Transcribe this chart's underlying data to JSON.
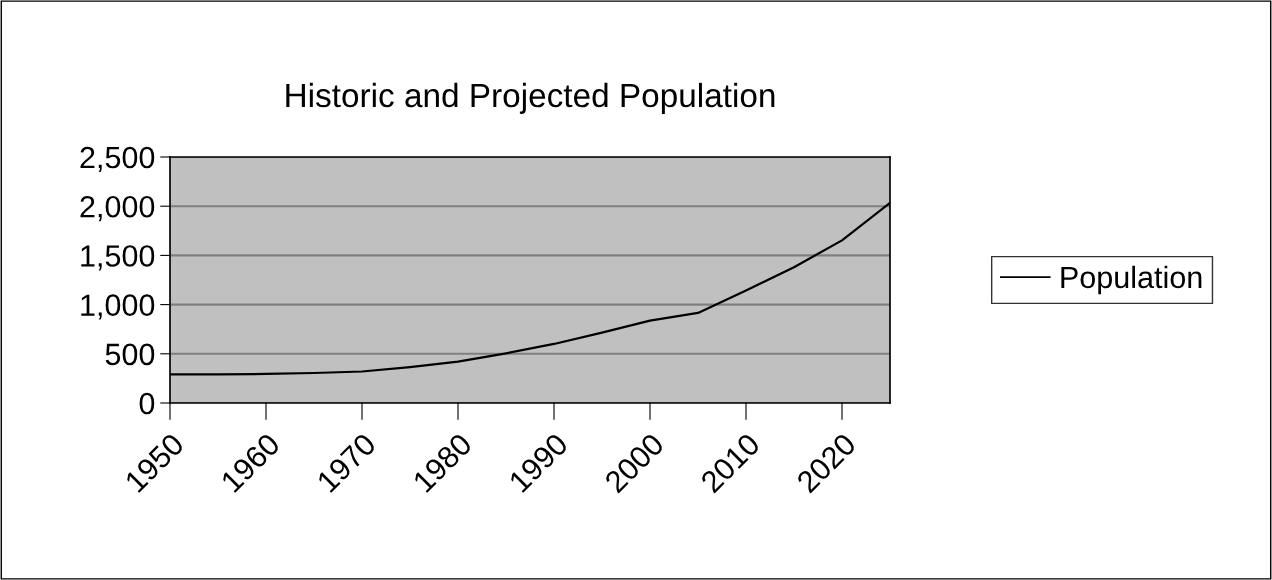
{
  "chart_data": {
    "type": "line",
    "title": "Historic and Projected Population",
    "x": [
      1950,
      1955,
      1960,
      1965,
      1970,
      1975,
      1980,
      1985,
      1990,
      1995,
      2000,
      2005,
      2010,
      2015,
      2020,
      2025
    ],
    "series": [
      {
        "name": "Population",
        "color": "#000000",
        "values": [
          290,
          292,
          295,
          305,
          320,
          365,
          420,
          505,
          600,
          715,
          837,
          915,
          1143,
          1380,
          1653,
          2034
        ]
      }
    ],
    "xlim": [
      1950,
      2025
    ],
    "xticks": [
      1950,
      1960,
      1970,
      1980,
      1990,
      2000,
      2010,
      2020
    ],
    "ylim": [
      0,
      2500
    ],
    "yticks": [
      {
        "value": 0,
        "label": "0"
      },
      {
        "value": 500,
        "label": "500"
      },
      {
        "value": 1000,
        "label": "1,000"
      },
      {
        "value": 1500,
        "label": "1,500"
      },
      {
        "value": 2000,
        "label": "2,000"
      },
      {
        "value": 2500,
        "label": "2,500"
      }
    ],
    "grid": "y",
    "legend": "right",
    "marker": "none",
    "line_style": "solid"
  }
}
